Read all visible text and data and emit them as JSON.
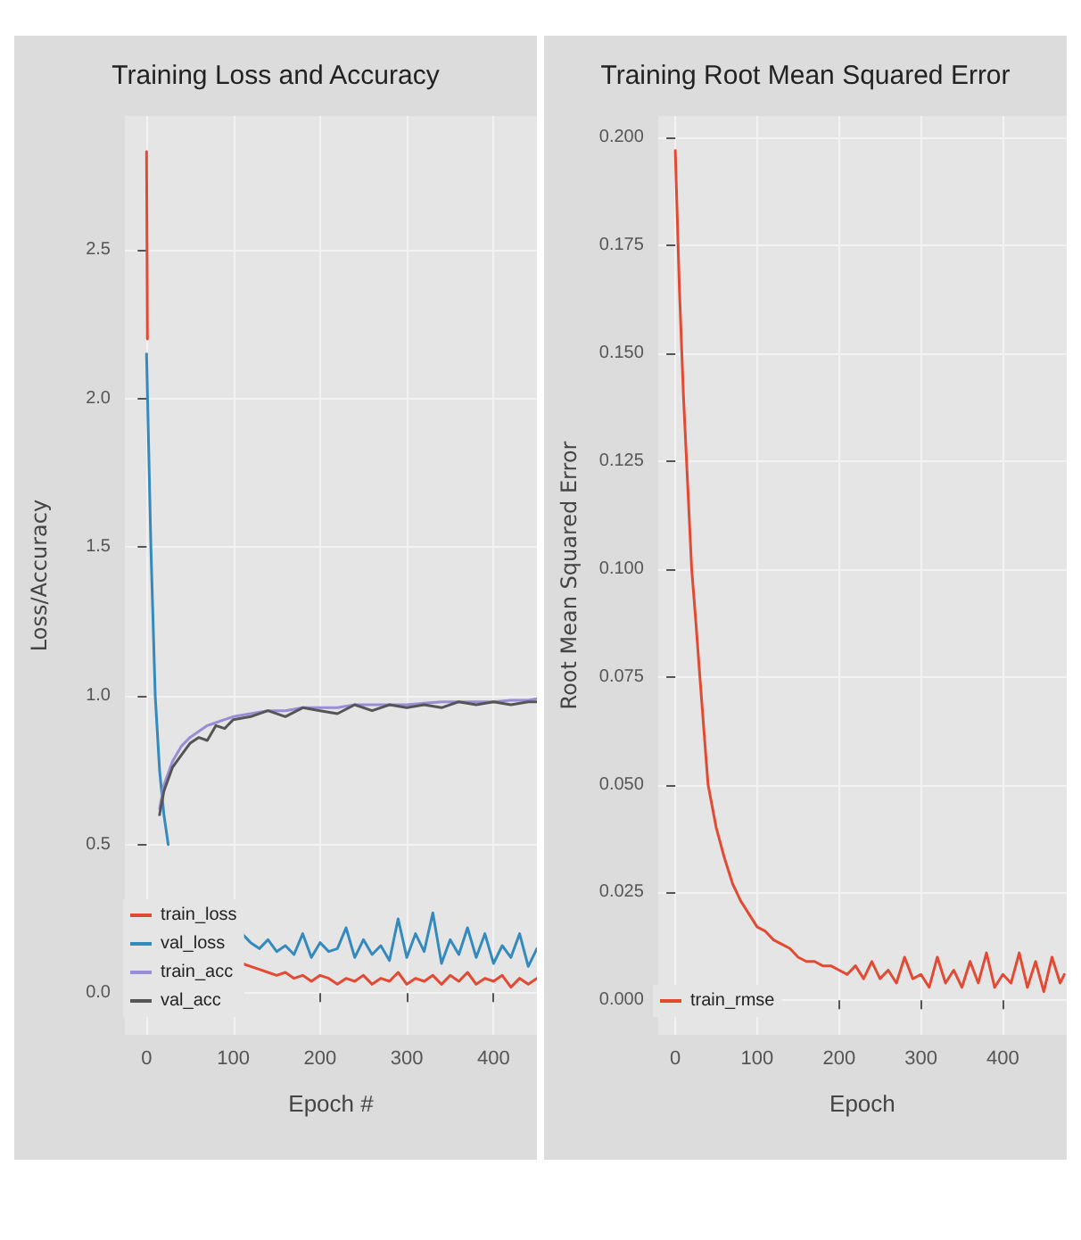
{
  "chart_data": [
    {
      "type": "line",
      "title": "Training Loss and Accuracy",
      "xlabel": "Epoch #",
      "ylabel": "Loss/Accuracy",
      "xlim": [
        -25,
        450
      ],
      "ylim": [
        -0.14,
        2.95
      ],
      "xticks": [
        0,
        100,
        200,
        300,
        400
      ],
      "yticks": [
        {
          "value": 0,
          "label": "0.0"
        },
        0.5,
        {
          "value": 1,
          "label": "1.0"
        },
        1.5,
        {
          "value": 2,
          "label": "2.0"
        },
        2.5
      ],
      "grid": true,
      "legend": "bottom left",
      "marker": "none",
      "line_style": "solid",
      "series": [
        {
          "name": "train_loss",
          "color": "#e24a33",
          "x": [
            0,
            1,
            30,
            110,
            120,
            130,
            140,
            150,
            160,
            170,
            180,
            190,
            200,
            210,
            220,
            230,
            240,
            250,
            260,
            270,
            280,
            290,
            300,
            310,
            320,
            330,
            340,
            350,
            360,
            370,
            380,
            390,
            400,
            410,
            420,
            430,
            440,
            450
          ],
          "values": [
            2.83,
            2.2,
            null,
            0.1,
            0.09,
            0.08,
            0.07,
            0.06,
            0.07,
            0.05,
            0.06,
            0.04,
            0.06,
            0.05,
            0.03,
            0.05,
            0.04,
            0.06,
            0.03,
            0.05,
            0.04,
            0.07,
            0.03,
            0.05,
            0.04,
            0.06,
            0.03,
            0.06,
            0.04,
            0.07,
            0.03,
            0.05,
            0.04,
            0.06,
            0.02,
            0.05,
            0.03,
            0.05
          ]
        },
        {
          "name": "val_loss",
          "color": "#348abd",
          "x": [
            0,
            5,
            10,
            15,
            20,
            25,
            30,
            110,
            120,
            130,
            140,
            150,
            160,
            170,
            180,
            190,
            200,
            210,
            220,
            230,
            240,
            250,
            260,
            270,
            280,
            290,
            300,
            310,
            320,
            330,
            340,
            350,
            360,
            370,
            380,
            390,
            400,
            410,
            420,
            430,
            440,
            450
          ],
          "values": [
            2.15,
            1.5,
            1.0,
            0.75,
            0.6,
            0.5,
            null,
            0.2,
            0.17,
            0.15,
            0.18,
            0.14,
            0.16,
            0.13,
            0.2,
            0.12,
            0.17,
            0.14,
            0.15,
            0.22,
            0.12,
            0.18,
            0.13,
            0.16,
            0.11,
            0.25,
            0.12,
            0.2,
            0.14,
            0.27,
            0.1,
            0.18,
            0.13,
            0.22,
            0.12,
            0.2,
            0.1,
            0.16,
            0.12,
            0.2,
            0.09,
            0.15
          ]
        },
        {
          "name": "train_acc",
          "color": "#988ed5",
          "x": [
            15,
            20,
            30,
            40,
            50,
            60,
            70,
            80,
            90,
            100,
            120,
            140,
            160,
            180,
            200,
            220,
            240,
            260,
            280,
            300,
            320,
            340,
            360,
            380,
            400,
            420,
            440,
            450
          ],
          "values": [
            0.62,
            0.7,
            0.78,
            0.83,
            0.86,
            0.88,
            0.9,
            0.91,
            0.92,
            0.93,
            0.94,
            0.95,
            0.95,
            0.96,
            0.96,
            0.96,
            0.97,
            0.97,
            0.97,
            0.97,
            0.975,
            0.98,
            0.98,
            0.98,
            0.98,
            0.985,
            0.985,
            0.99
          ]
        },
        {
          "name": "val_acc",
          "color": "#555555",
          "x": [
            15,
            20,
            30,
            40,
            50,
            60,
            70,
            80,
            90,
            100,
            120,
            140,
            160,
            180,
            200,
            220,
            240,
            260,
            280,
            300,
            320,
            340,
            360,
            380,
            400,
            420,
            440,
            450
          ],
          "values": [
            0.6,
            0.68,
            0.76,
            0.8,
            0.84,
            0.86,
            0.85,
            0.9,
            0.89,
            0.92,
            0.93,
            0.95,
            0.93,
            0.96,
            0.95,
            0.94,
            0.97,
            0.95,
            0.97,
            0.96,
            0.97,
            0.96,
            0.98,
            0.97,
            0.98,
            0.97,
            0.98,
            0.98
          ]
        }
      ]
    },
    {
      "type": "line",
      "title": "Training Root Mean Squared Error",
      "xlabel": "Epoch",
      "ylabel": "Root Mean Squared Error",
      "xlim": [
        -21,
        478
      ],
      "ylim": [
        -0.008,
        0.205
      ],
      "xticks": [
        0,
        100,
        200,
        300,
        400
      ],
      "yticks": [
        {
          "value": 0,
          "label": "0.000"
        },
        {
          "value": 0.025,
          "label": "0.025"
        },
        {
          "value": 0.05,
          "label": "0.050"
        },
        {
          "value": 0.075,
          "label": "0.075"
        },
        {
          "value": 0.1,
          "label": "0.100"
        },
        {
          "value": 0.125,
          "label": "0.125"
        },
        {
          "value": 0.15,
          "label": "0.150"
        },
        {
          "value": 0.175,
          "label": "0.175"
        },
        {
          "value": 0.2,
          "label": "0.200"
        }
      ],
      "grid": true,
      "legend": "bottom left",
      "marker": "none",
      "line_style": "solid",
      "series": [
        {
          "name": "train_rmse",
          "color": "#e24a33",
          "x": [
            0,
            5,
            10,
            15,
            20,
            25,
            30,
            40,
            50,
            60,
            70,
            80,
            90,
            100,
            110,
            120,
            130,
            140,
            150,
            160,
            170,
            180,
            190,
            200,
            210,
            220,
            230,
            240,
            250,
            260,
            270,
            280,
            290,
            300,
            310,
            320,
            330,
            340,
            350,
            360,
            370,
            380,
            390,
            400,
            410,
            420,
            430,
            440,
            450,
            460,
            470,
            475
          ],
          "values": [
            0.197,
            0.165,
            0.14,
            0.12,
            0.1,
            0.088,
            0.075,
            0.05,
            0.04,
            0.033,
            0.027,
            0.023,
            0.02,
            0.017,
            0.016,
            0.014,
            0.013,
            0.012,
            0.01,
            0.009,
            0.009,
            0.008,
            0.008,
            0.007,
            0.006,
            0.008,
            0.005,
            0.009,
            0.005,
            0.007,
            0.004,
            0.01,
            0.005,
            0.006,
            0.003,
            0.01,
            0.004,
            0.007,
            0.003,
            0.009,
            0.004,
            0.011,
            0.003,
            0.006,
            0.004,
            0.011,
            0.003,
            0.009,
            0.002,
            0.01,
            0.004,
            0.006
          ]
        }
      ]
    }
  ]
}
